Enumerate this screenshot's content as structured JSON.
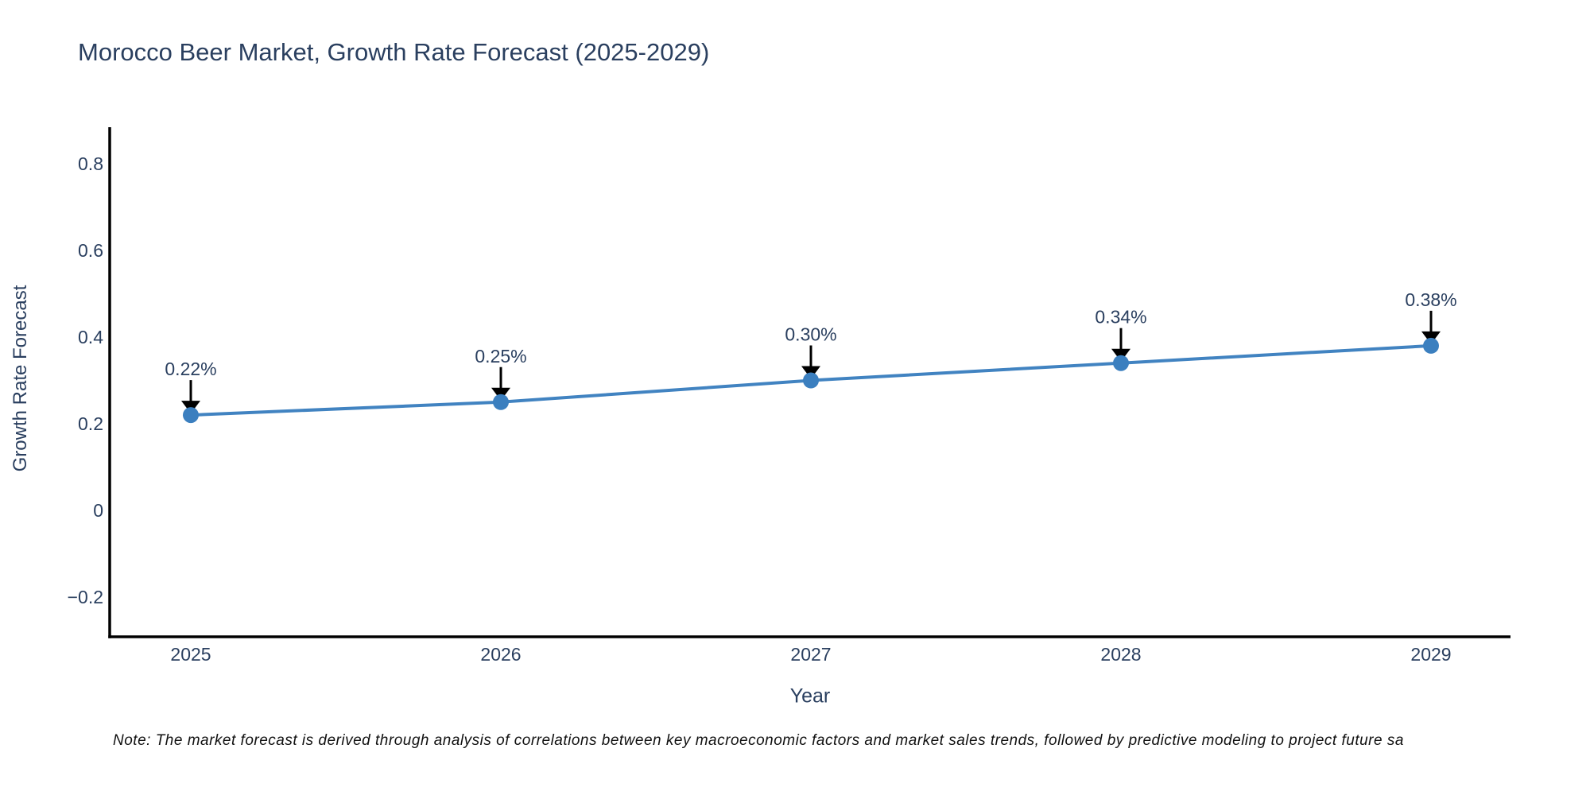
{
  "chart": {
    "title": "Morocco Beer Market, Growth Rate Forecast (2025-2029)",
    "xlabel": "Year",
    "ylabel": "Growth Rate Forecast"
  },
  "note": {
    "text": "Note: The market forecast is derived through analysis of correlations between key macroeconomic factors and market sales trends, followed by predictive modeling to project future sa"
  },
  "chart_data": {
    "type": "line",
    "title": "Morocco Beer Market, Growth Rate Forecast (2025-2029)",
    "xlabel": "Year",
    "ylabel": "Growth Rate Forecast",
    "categories": [
      "2025",
      "2026",
      "2027",
      "2028",
      "2029"
    ],
    "series": [
      {
        "name": "Growth Rate Forecast",
        "values": [
          0.22,
          0.25,
          0.3,
          0.34,
          0.38
        ],
        "point_labels": [
          "0.22%",
          "0.25%",
          "0.30%",
          "0.34%",
          "0.38%"
        ]
      }
    ],
    "y_ticks": [
      0.8,
      0.6,
      0.4,
      0.2,
      0,
      -0.2
    ],
    "y_tick_labels": [
      "0.8",
      "0.6",
      "0.4",
      "0.2",
      "0",
      "−0.2"
    ],
    "ylim": [
      -0.29,
      0.88
    ],
    "grid": false,
    "legend_position": "none",
    "colors": {
      "line": "#4183c1",
      "marker": "#3b7fbf",
      "axis": "#000000",
      "chart_text": "#2a3f5f",
      "annotation_arrow": "#000000",
      "note_text": "#111111"
    }
  }
}
